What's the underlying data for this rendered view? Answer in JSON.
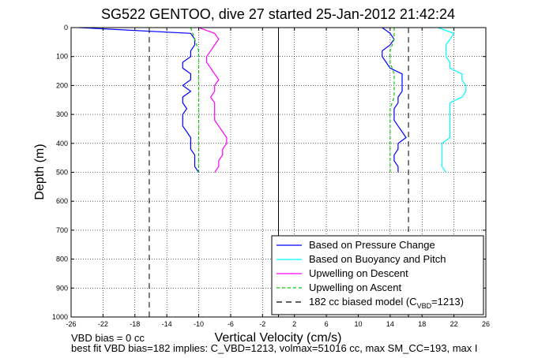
{
  "chart_data": {
    "type": "line",
    "title": "SG522 GENTOO, dive 27 started 25-Jan-2012 21:42:24",
    "xlabel": "Vertical Velocity (cm/s)",
    "ylabel": "Depth (m)",
    "xlim": [
      -26,
      26
    ],
    "ylim": [
      1000,
      0
    ],
    "y_reversed": true,
    "grid": true,
    "legend_position": "bottom-right",
    "xticks": [
      -26,
      -22,
      -18,
      -14,
      -10,
      -6,
      -2,
      2,
      6,
      10,
      14,
      18,
      22,
      26
    ],
    "xtick_labels": [
      "-26",
      "-22",
      "-18",
      "-14",
      "-10",
      "-6",
      "-2",
      "2",
      "6",
      "10",
      "14",
      "18",
      "22",
      "26"
    ],
    "yticks": [
      0,
      100,
      200,
      300,
      400,
      500,
      600,
      700,
      800,
      900,
      1000
    ],
    "ytick_labels": [
      "0",
      "100",
      "200",
      "300",
      "400",
      "500",
      "600",
      "700",
      "800",
      "900",
      "1000"
    ],
    "series": [
      {
        "name": "Based on Pressure Change",
        "color": "#0000ff",
        "style": "solid",
        "segments": [
          {
            "depth": [
              0,
              20,
              40,
              60,
              80,
              100,
              120,
              140,
              160,
              180,
              200,
              220,
              240,
              260,
              280,
              300,
              320,
              340,
              360,
              380,
              400,
              420,
              440,
              460,
              480,
              500
            ],
            "velocity": [
              -25,
              -11,
              -10.5,
              -10.5,
              -11,
              -11,
              -12,
              -12,
              -11,
              -11,
              -12,
              -11,
              -12,
              -12,
              -11.5,
              -12,
              -12,
              -12,
              -11.5,
              -11,
              -11,
              -11,
              -10.5,
              -10.5,
              -10.5,
              -10
            ]
          },
          {
            "depth": [
              0,
              20,
              40,
              60,
              80,
              100,
              120,
              140,
              160,
              180,
              200,
              220,
              240,
              260,
              280,
              300,
              320,
              340,
              360,
              380,
              400,
              420,
              440,
              460,
              480,
              500
            ],
            "velocity": [
              13,
              14,
              14.5,
              14,
              13,
              13,
              13.5,
              14,
              15.5,
              15.5,
              15.5,
              15.5,
              15,
              15,
              14.5,
              14.5,
              14.5,
              15,
              15.5,
              16,
              15,
              15,
              14.5,
              14.5,
              15,
              15
            ]
          }
        ]
      },
      {
        "name": "Based on Buoyancy and Pitch",
        "color": "#00ffff",
        "style": "solid",
        "segments": [
          {
            "depth": [
              0,
              20,
              40,
              60,
              80,
              100,
              120,
              140,
              160,
              180,
              200,
              220,
              240,
              260,
              280,
              300,
              320,
              340,
              360,
              380,
              400,
              420,
              440,
              460,
              480,
              500
            ],
            "velocity": [
              20,
              22,
              21.5,
              21,
              21,
              21,
              21.5,
              21.5,
              23,
              23,
              23.5,
              23.5,
              23,
              21.5,
              21.5,
              21.5,
              21.5,
              21.5,
              21.5,
              21.5,
              20.5,
              20.5,
              20.5,
              20.5,
              20.5,
              21
            ]
          }
        ]
      },
      {
        "name": "Upwelling on Descent",
        "color": "#ff00ff",
        "style": "solid",
        "segments": [
          {
            "depth": [
              0,
              20,
              40,
              60,
              80,
              100,
              120,
              140,
              160,
              180,
              200,
              220,
              240,
              260,
              280,
              300,
              320,
              340,
              360,
              380,
              400,
              420,
              440,
              460,
              480,
              500
            ],
            "velocity": [
              -10,
              -8,
              -7.5,
              -8,
              -8.5,
              -9,
              -9,
              -8.5,
              -8,
              -7.5,
              -8,
              -8,
              -8.5,
              -8,
              -8,
              -8,
              -8,
              -7.5,
              -7,
              -6.5,
              -6.5,
              -7,
              -7,
              -7.5,
              -7.5,
              -8
            ]
          }
        ]
      },
      {
        "name": "Upwelling on Ascent",
        "color": "#00cc00",
        "style": "dashed",
        "segments": [
          {
            "depth": [
              0,
              40,
              80,
              120,
              160,
              200,
              240,
              280,
              320,
              360,
              400,
              440,
              480,
              500
            ],
            "velocity": [
              -11,
              -10.5,
              -10,
              -10,
              -10,
              -10,
              -10,
              -10,
              -10,
              -10,
              -10,
              -10,
              -10,
              -10
            ]
          },
          {
            "depth": [
              0,
              40,
              80,
              120,
              160,
              200,
              240,
              280,
              320,
              360,
              400,
              440,
              480,
              500
            ],
            "velocity": [
              14.5,
              14.5,
              14,
              14,
              14.5,
              14.5,
              14.5,
              14,
              14,
              14,
              14,
              14,
              14,
              14
            ]
          }
        ]
      },
      {
        "name": "182 cc biased model (C_VBD=1213)",
        "legend_label": "182 cc biased model (C",
        "legend_sub": "VBD",
        "legend_suffix": "=1213)",
        "color": "#000000",
        "style": "dashed",
        "verticals": [
          -16.2,
          16.3
        ]
      }
    ],
    "reference_line": {
      "x": 0,
      "color": "#000000",
      "style": "solid"
    }
  },
  "footer": {
    "line1": "VBD bias = 0 cc",
    "line2": "best fit VBD bias=182 implies: C_VBD=1213, volmax=51016 cc, max SM_CC=193, max I"
  }
}
